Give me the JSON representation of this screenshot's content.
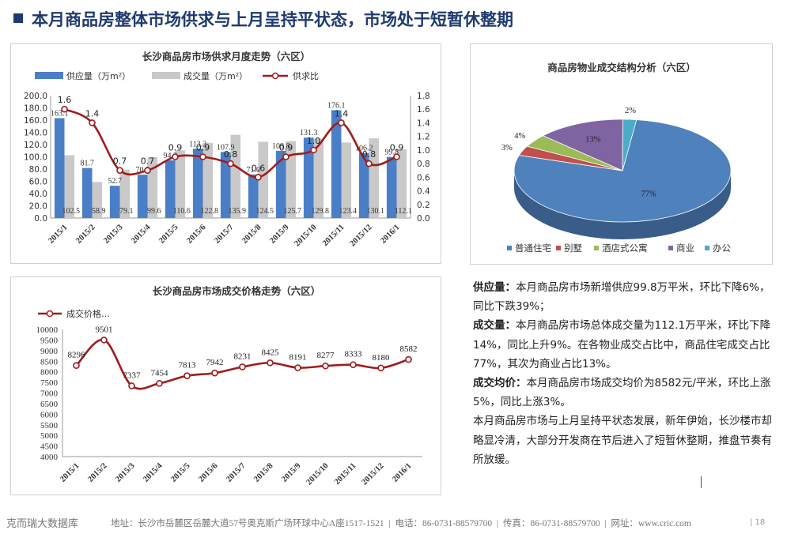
{
  "header": {
    "title": "本月商品房整体市场供求与上月呈持平状态，市场处于短暂休整期"
  },
  "chart_data": [
    {
      "type": "bar",
      "title": "长沙商品房市场供求月度走势（六区）",
      "categories": [
        "2015/1",
        "2015/2",
        "2015/3",
        "2015/4",
        "2015/5",
        "2015/6",
        "2015/7",
        "2015/8",
        "2015/9",
        "2015/10",
        "2015/11",
        "2015/12",
        "2016/1"
      ],
      "series": [
        {
          "name": "供应量（万m²）",
          "kind": "bar",
          "color": "#4a7fc8",
          "values": [
            163.1,
            81.7,
            52.7,
            70.8,
            94.2,
            113.2,
            107.9,
            71.0,
            109.8,
            131.3,
            176.1,
            106.2,
            99.8
          ]
        },
        {
          "name": "成交量（万m²）",
          "kind": "bar",
          "color": "#c9c9c9",
          "values": [
            102.5,
            58.9,
            79.1,
            99.6,
            110.6,
            122.8,
            135.9,
            124.5,
            125.7,
            129.8,
            123.4,
            130.1,
            112.1
          ]
        },
        {
          "name": "供求比",
          "kind": "line",
          "axis": "right",
          "color": "#a01c1c",
          "values": [
            1.6,
            1.4,
            0.7,
            0.7,
            0.9,
            0.9,
            0.8,
            0.6,
            0.9,
            1.0,
            1.4,
            0.8,
            0.9
          ]
        }
      ],
      "supply_labels": [
        "163.1",
        "81.7",
        "52.7",
        "70.8",
        "94.2",
        "113.2",
        "107.9",
        "71.0",
        "109.8",
        "131.3",
        "176.1",
        "106.2",
        "99.8"
      ],
      "deal_labels": [
        "102.5",
        "58.9",
        "79.1",
        "99.6",
        "110.6",
        "122.8",
        "135.9",
        "124.5",
        "125.7",
        "129.8",
        "123.4",
        "130.1",
        "112.1"
      ],
      "ratio_labels": [
        "1.6",
        "1.4",
        "0.7",
        "0.7",
        "0.9",
        "0.9",
        "0.8",
        "0.6",
        "0.9",
        "1.0",
        "1.4",
        "0.8",
        "0.9"
      ],
      "ylim": [
        0,
        200
      ],
      "yticks": [
        "0.0",
        "20.0",
        "40.0",
        "60.0",
        "80.0",
        "100.0",
        "120.0",
        "140.0",
        "160.0",
        "180.0",
        "200.0"
      ],
      "y2lim": [
        0,
        1.8
      ],
      "y2ticks": [
        "0.0",
        "0.2",
        "0.4",
        "0.6",
        "0.8",
        "1.0",
        "1.2",
        "1.4",
        "1.6",
        "1.8"
      ],
      "legend": "top"
    },
    {
      "type": "pie",
      "title": "商品房物业成交结构分析（六区）",
      "slices": [
        {
          "name": "普通住宅",
          "value": 77,
          "label": "77%",
          "color": "#4f81bd"
        },
        {
          "name": "别墅",
          "value": 3,
          "label": "3%",
          "color": "#c0504d"
        },
        {
          "name": "酒店式公寓",
          "value": 4,
          "label": "4%",
          "color": "#9bbb59"
        },
        {
          "name": "商业",
          "value": 13,
          "label": "13%",
          "color": "#8064a2"
        },
        {
          "name": "办公",
          "value": 2,
          "label": "2%",
          "color": "#4bacc6"
        }
      ],
      "legend": "bottom"
    },
    {
      "type": "line",
      "title": "长沙商品房市场成交价格走势（六区）",
      "categories": [
        "2015/1",
        "2015/2",
        "2015/3",
        "2015/4",
        "2015/5",
        "2015/6",
        "2015/7",
        "2015/8",
        "2015/9",
        "2015/10",
        "2015/11",
        "2015/12",
        "2016/1"
      ],
      "series": [
        {
          "name": "成交价格…",
          "color": "#a01c1c",
          "values": [
            8296,
            9501,
            7337,
            7454,
            7813,
            7942,
            8231,
            8425,
            8191,
            8277,
            8333,
            8180,
            8582
          ]
        }
      ],
      "value_labels": [
        "8296",
        "9501",
        "7337",
        "7454",
        "7813",
        "7942",
        "8231",
        "8425",
        "8191",
        "8277",
        "8333",
        "8180",
        "8582"
      ],
      "ylim": [
        4000,
        10000
      ],
      "yticks": [
        "4000",
        "4500",
        "5000",
        "5500",
        "6000",
        "6500",
        "7000",
        "7500",
        "8000",
        "8500",
        "9000",
        "9500",
        "10000"
      ],
      "legend": "top-left"
    }
  ],
  "text": {
    "supply_key": "供应量：",
    "supply_body": "本月商品房市场新增供应99.8万平米，环比下降6%，同比下跌39%；",
    "deal_key": "成交量：",
    "deal_body": "本月商品房市场总体成交量为112.1万平米，环比下降14%，同比上升9%。在各物业成交占比中，商品住宅成交占比77%，其次为商业占比13%。",
    "price_key": "成交均价：",
    "price_body": "本月商品房市场成交均价为8582元/平米，环比上涨5%，同比上涨3%。",
    "summary": "本月商品房市场与上月呈持平状态发展，新年伊始，长沙楼市却略显冷清，大部分开发商在节后进入了短暂休整期，推盘节奏有所放缓。"
  },
  "footer": {
    "brand": "克而瑞大数据库",
    "address": "地址：长沙市岳麓区岳麓大道57号奥克斯广场环球中心A座1517-1521",
    "sep": "|",
    "phone": "电话：86-0731-88579700",
    "fax": "传真：86-0731-88579700",
    "web": "网址：www.cric.com",
    "page": "| 18"
  },
  "colors": {
    "title": "#1f3a6e",
    "supply": "#4a7fc8",
    "deal": "#c9c9c9",
    "ratio": "#a01c1c"
  }
}
